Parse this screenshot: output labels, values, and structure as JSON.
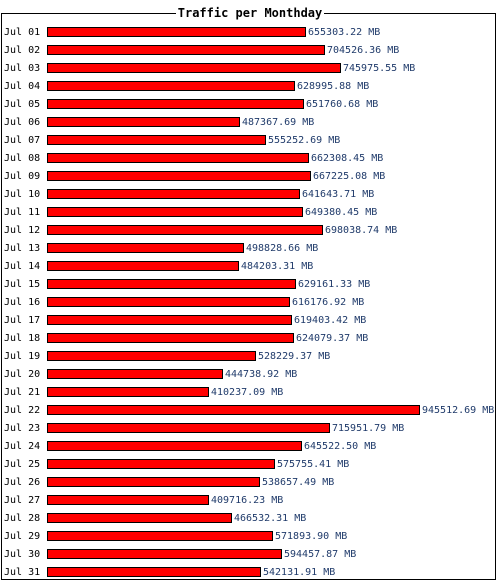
{
  "chart_data": {
    "type": "bar",
    "orientation": "horizontal",
    "title": "Traffic per Monthday",
    "xlabel": "",
    "ylabel": "",
    "bar_color": "#ff0000",
    "bar_border": "#000000",
    "value_color": "#1f3a6a",
    "unit": "MB",
    "xlim": [
      0,
      945512.69
    ],
    "grid": false,
    "categories": [
      "Jul 01",
      "Jul 02",
      "Jul 03",
      "Jul 04",
      "Jul 05",
      "Jul 06",
      "Jul 07",
      "Jul 08",
      "Jul 09",
      "Jul 10",
      "Jul 11",
      "Jul 12",
      "Jul 13",
      "Jul 14",
      "Jul 15",
      "Jul 16",
      "Jul 17",
      "Jul 18",
      "Jul 19",
      "Jul 20",
      "Jul 21",
      "Jul 22",
      "Jul 23",
      "Jul 24",
      "Jul 25",
      "Jul 26",
      "Jul 27",
      "Jul 28",
      "Jul 29",
      "Jul 30",
      "Jul 31"
    ],
    "values": [
      655303.22,
      704526.36,
      745975.55,
      628995.88,
      651760.68,
      487367.69,
      555252.69,
      662308.45,
      667225.08,
      641643.71,
      649380.45,
      698038.74,
      498828.66,
      484203.31,
      629161.33,
      616176.92,
      619403.42,
      624079.37,
      528229.37,
      444738.92,
      410237.09,
      945512.69,
      715951.79,
      645522.5,
      575755.41,
      538657.49,
      409716.23,
      466532.31,
      571893.9,
      594457.87,
      542131.91
    ],
    "value_labels": [
      "655303.22 MB",
      "704526.36 MB",
      "745975.55 MB",
      "628995.88 MB",
      "651760.68 MB",
      "487367.69 MB",
      "555252.69 MB",
      "662308.45 MB",
      "667225.08 MB",
      "641643.71 MB",
      "649380.45 MB",
      "698038.74 MB",
      "498828.66 MB",
      "484203.31 MB",
      "629161.33 MB",
      "616176.92 MB",
      "619403.42 MB",
      "624079.37 MB",
      "528229.37 MB",
      "444738.92 MB",
      "410237.09 MB",
      "945512.69 MB",
      "715951.79 MB",
      "645522.50 MB",
      "575755.41 MB",
      "538657.49 MB",
      "409716.23 MB",
      "466532.31 MB",
      "571893.90 MB",
      "594457.87 MB",
      "542131.91 MB"
    ]
  }
}
